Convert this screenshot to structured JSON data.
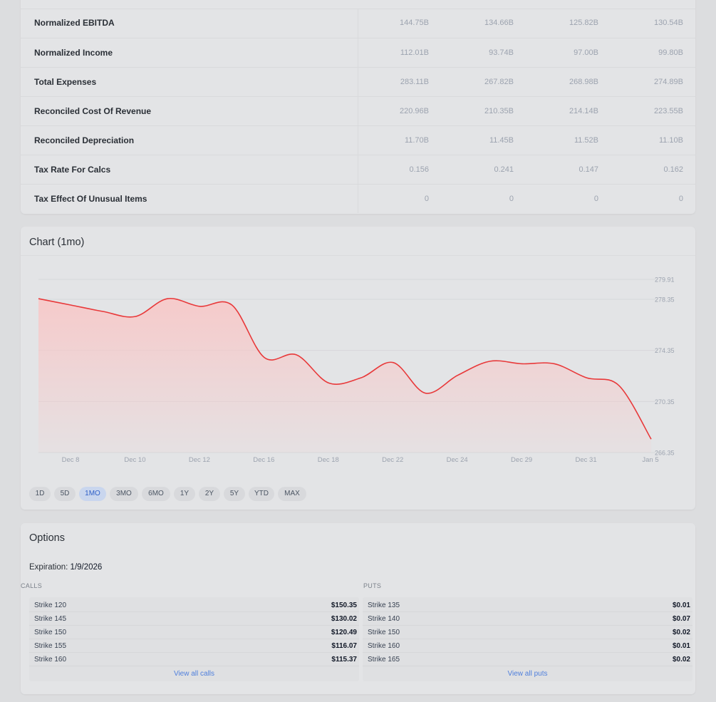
{
  "financials": {
    "rows": [
      {
        "label": "Normalized EBITDA",
        "values": [
          "144.75B",
          "134.66B",
          "125.82B",
          "130.54B"
        ]
      },
      {
        "label": "Normalized Income",
        "values": [
          "112.01B",
          "93.74B",
          "97.00B",
          "99.80B"
        ]
      },
      {
        "label": "Total Expenses",
        "values": [
          "283.11B",
          "267.82B",
          "268.98B",
          "274.89B"
        ]
      },
      {
        "label": "Reconciled Cost Of Revenue",
        "values": [
          "220.96B",
          "210.35B",
          "214.14B",
          "223.55B"
        ]
      },
      {
        "label": "Reconciled Depreciation",
        "values": [
          "11.70B",
          "11.45B",
          "11.52B",
          "11.10B"
        ]
      },
      {
        "label": "Tax Rate For Calcs",
        "values": [
          "0.156",
          "0.241",
          "0.147",
          "0.162"
        ]
      },
      {
        "label": "Tax Effect Of Unusual Items",
        "values": [
          "0",
          "0",
          "0",
          "0"
        ]
      }
    ]
  },
  "chart": {
    "title": "Chart (1mo)",
    "ranges": [
      "1D",
      "5D",
      "1MO",
      "3MO",
      "6MO",
      "1Y",
      "2Y",
      "5Y",
      "YTD",
      "MAX"
    ],
    "active_range": "1MO"
  },
  "chart_data": {
    "type": "area",
    "title": "",
    "xlabel": "",
    "ylabel": "",
    "x_ticks": [
      "Dec 8",
      "Dec 10",
      "Dec 12",
      "Dec 16",
      "Dec 18",
      "Dec 22",
      "Dec 24",
      "Dec 29",
      "Dec 31",
      "Jan 5"
    ],
    "y_ticks": [
      266.35,
      270.35,
      274.35,
      278.35,
      279.91
    ],
    "ylim": [
      266.35,
      279.91
    ],
    "grid": true,
    "line_color": "#e8393a",
    "fill_color": "#f7c9c9",
    "series": [
      {
        "values": [
          278.4,
          277.9,
          277.4,
          277.0,
          278.4,
          277.8,
          277.9,
          273.8,
          274.0,
          271.8,
          272.2,
          273.4,
          271.0,
          272.4,
          273.5,
          273.3,
          273.3,
          272.2,
          271.6,
          267.4
        ]
      }
    ]
  },
  "options": {
    "title": "Options",
    "expiration_label": "Expiration:",
    "expiration_date": "1/9/2026",
    "calls": {
      "title": "CALLS",
      "rows": [
        {
          "strike": "Strike 120",
          "price": "$150.35"
        },
        {
          "strike": "Strike 145",
          "price": "$130.02"
        },
        {
          "strike": "Strike 150",
          "price": "$120.49"
        },
        {
          "strike": "Strike 155",
          "price": "$116.07"
        },
        {
          "strike": "Strike 160",
          "price": "$115.37"
        }
      ],
      "view_all": "View all calls"
    },
    "puts": {
      "title": "PUTS",
      "rows": [
        {
          "strike": "Strike 135",
          "price": "$0.01"
        },
        {
          "strike": "Strike 140",
          "price": "$0.07"
        },
        {
          "strike": "Strike 150",
          "price": "$0.02"
        },
        {
          "strike": "Strike 160",
          "price": "$0.01"
        },
        {
          "strike": "Strike 165",
          "price": "$0.02"
        }
      ],
      "view_all": "View all puts"
    }
  }
}
